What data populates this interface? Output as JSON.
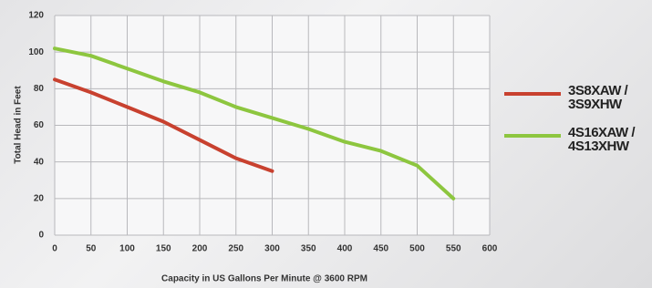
{
  "chart_data": {
    "type": "line",
    "x_label": "Capacity in US Gallons Per Minute @ 3600 RPM",
    "y_label": "Total Head in Feet",
    "xlim": [
      0,
      600
    ],
    "xticks": [
      0,
      50,
      100,
      150,
      200,
      250,
      300,
      350,
      400,
      450,
      500,
      550,
      600
    ],
    "ylim": [
      0,
      120
    ],
    "yticks": [
      0,
      20,
      40,
      60,
      80,
      100,
      120
    ],
    "grid": true,
    "series": [
      {
        "name": "3S8XAW / 3S9XHW",
        "color": "#c8412f",
        "x": [
          0,
          50,
          100,
          150,
          200,
          250,
          300
        ],
        "values": [
          85,
          78,
          70,
          62,
          52,
          42,
          35
        ]
      },
      {
        "name": "4S16XAW / 4S13XHW",
        "color": "#8dc63f",
        "x": [
          0,
          50,
          100,
          150,
          200,
          250,
          300,
          350,
          400,
          450,
          500,
          550
        ],
        "values": [
          102,
          98,
          91,
          84,
          78,
          70,
          64,
          58,
          51,
          46,
          38,
          20
        ]
      }
    ]
  }
}
